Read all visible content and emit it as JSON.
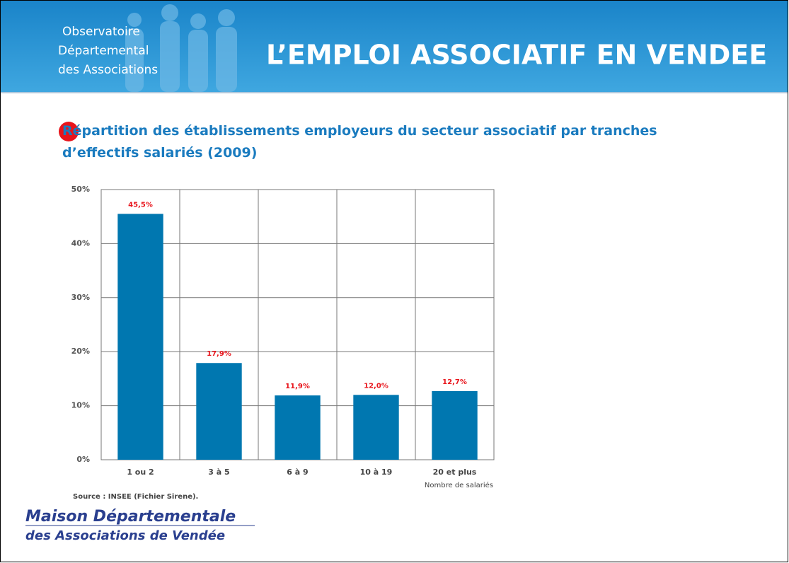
{
  "header": {
    "org_lines": [
      "Observatoire",
      "Départemental",
      "des Associations"
    ],
    "title": "L’EMPLOI ASSOCIATIF EN VENDEE"
  },
  "chart_data": {
    "type": "bar",
    "title": "Répartition des établissements employeurs du secteur associatif par tranches d’effectifs salariés (2009)",
    "categories": [
      "1 ou 2",
      "3 à 5",
      "6 à 9",
      "10 à 19",
      "20 et plus"
    ],
    "values": [
      45.5,
      17.9,
      11.9,
      12.0,
      12.7
    ],
    "value_labels": [
      "45,5%",
      "17,9%",
      "11,9%",
      "12,0%",
      "12,7%"
    ],
    "color": "#0077b0",
    "x_label": "Nombre de salariés",
    "ylim": [
      0,
      50
    ],
    "yticks": [
      {
        "value": 0,
        "label": "0%"
      },
      {
        "value": 10,
        "label": "10%"
      },
      {
        "value": 20,
        "label": "20%"
      },
      {
        "value": 30,
        "label": "30%"
      },
      {
        "value": 40,
        "label": "40%"
      },
      {
        "value": 50,
        "label": "50%"
      }
    ],
    "grid": true,
    "source": "Source : INSEE (Fichier Sirene)."
  },
  "footer_logo": {
    "lines": [
      "Maison Départementale",
      "des Associations de Vendée"
    ]
  }
}
